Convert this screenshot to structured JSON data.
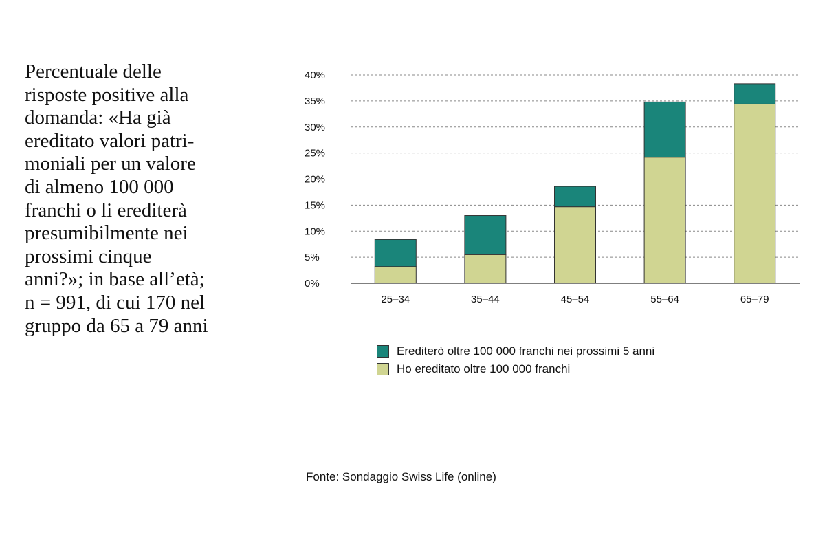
{
  "description": "Percentuale delle\nrisposte positive alla\ndomanda: «Ha già\nereditato valori patri-\nmoniali per un valore\ndi almeno 100 000\nfranchi o li erediterà\npresumibilmente nei\nprossimi cinque\nanni?»; in base all’età;\nn = 991, di cui 170 nel\ngruppo da 65 a 79 anni",
  "source": "Fonte: Sondaggio Swiss Life (online)",
  "colors": {
    "inherited": "#d0d592",
    "will_inherit": "#1a857a",
    "bar_outline": "#333333",
    "grid": "#888888",
    "axis": "#555555"
  },
  "chart_data": {
    "type": "bar",
    "stacked": true,
    "categories": [
      "25–34",
      "35–44",
      "45–54",
      "55–64",
      "65–79"
    ],
    "series": [
      {
        "name": "Ho ereditato oltre 100 000 franchi",
        "values": [
          3.2,
          5.5,
          14.7,
          24.2,
          34.4
        ],
        "color_key": "inherited"
      },
      {
        "name": "Erediterò oltre 100 000 franchi nei prossimi 5 anni",
        "values": [
          5.2,
          7.5,
          3.9,
          10.6,
          3.9
        ],
        "color_key": "will_inherit"
      }
    ],
    "ylim": [
      0,
      40
    ],
    "y_ticks": [
      0,
      5,
      10,
      15,
      20,
      25,
      30,
      35,
      40
    ],
    "y_tick_labels": [
      "0%",
      "5%",
      "10%",
      "15%",
      "20%",
      "25%",
      "30%",
      "35%",
      "40%"
    ],
    "grid": "horizontal dashed",
    "legend_position": "bottom",
    "legend_order": [
      "Erediterò oltre 100 000 franchi nei prossimi 5 anni",
      "Ho ereditato oltre 100 000 franchi"
    ]
  }
}
